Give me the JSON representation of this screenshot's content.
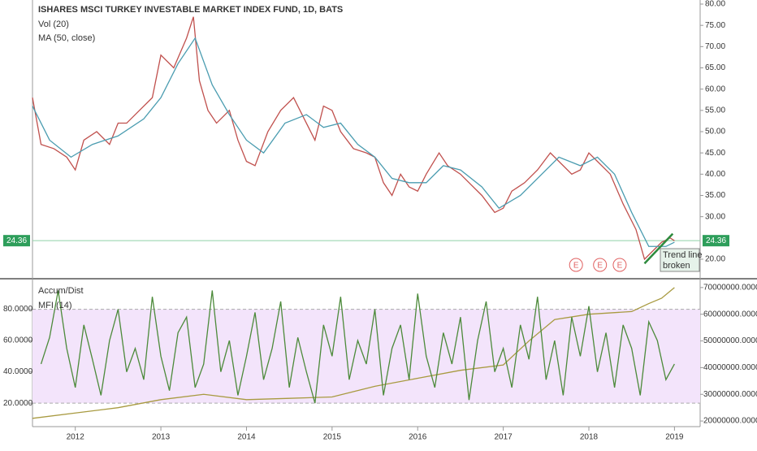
{
  "chart_data": [
    {
      "type": "line",
      "title": "ISHARES MSCI TURKEY INVESTABLE MARKET INDEX FUND, 1D, BATS",
      "legend": [
        "Vol (20)",
        "MA (50, close)"
      ],
      "xlim": [
        2011.5,
        2019.3
      ],
      "ylim": [
        15.6,
        80.96
      ],
      "yticks": [
        {
          "value": 80,
          "label": "80.00"
        },
        {
          "value": 75,
          "label": "75.00"
        },
        {
          "value": 70,
          "label": "70.00"
        },
        {
          "value": 65,
          "label": "65.00"
        },
        {
          "value": 60,
          "label": "60.00"
        },
        {
          "value": 55,
          "label": "55.00"
        },
        {
          "value": 50,
          "label": "50.00"
        },
        {
          "value": 45,
          "label": "45.00"
        },
        {
          "value": 40,
          "label": "40.00"
        },
        {
          "value": 35,
          "label": "35.00"
        },
        {
          "value": 30,
          "label": "30.00"
        },
        {
          "value": 20,
          "label": "20.00"
        }
      ],
      "last_price": 24.36,
      "series": [
        {
          "color": "#c0504d",
          "x": [
            2011.5,
            2011.6,
            2011.75,
            2011.9,
            2012.0,
            2012.1,
            2012.25,
            2012.4,
            2012.5,
            2012.6,
            2012.75,
            2012.9,
            2013.0,
            2013.15,
            2013.3,
            2013.38,
            2013.45,
            2013.55,
            2013.65,
            2013.8,
            2013.9,
            2014.0,
            2014.1,
            2014.25,
            2014.4,
            2014.55,
            2014.7,
            2014.8,
            2014.9,
            2015.0,
            2015.1,
            2015.25,
            2015.4,
            2015.5,
            2015.6,
            2015.7,
            2015.8,
            2015.9,
            2016.0,
            2016.1,
            2016.25,
            2016.35,
            2016.5,
            2016.6,
            2016.75,
            2016.9,
            2017.0,
            2017.1,
            2017.25,
            2017.4,
            2017.55,
            2017.65,
            2017.8,
            2017.9,
            2018.0,
            2018.1,
            2018.25,
            2018.4,
            2018.55,
            2018.65,
            2018.75,
            2018.85,
            2018.95,
            2019.0
          ],
          "values": [
            58,
            47,
            46,
            44,
            41,
            48,
            50,
            47,
            52,
            52,
            55,
            58,
            68,
            65,
            72,
            77,
            62,
            55,
            52,
            55,
            48,
            43,
            42,
            50,
            55,
            58,
            52,
            48,
            56,
            55,
            50,
            46,
            45,
            44,
            38,
            35,
            40,
            37,
            36,
            40,
            45,
            42,
            40,
            38,
            35,
            31,
            32,
            36,
            38,
            41,
            45,
            43,
            40,
            41,
            45,
            43,
            40,
            33,
            27,
            20,
            22,
            24,
            25,
            24.36
          ]
        },
        {
          "name": "MA (50, close)",
          "color": "#4a9cb0",
          "x": [
            2011.5,
            2011.7,
            2011.95,
            2012.2,
            2012.5,
            2012.8,
            2013.0,
            2013.2,
            2013.4,
            2013.6,
            2013.8,
            2014.0,
            2014.2,
            2014.45,
            2014.7,
            2014.9,
            2015.1,
            2015.3,
            2015.5,
            2015.7,
            2015.9,
            2016.1,
            2016.3,
            2016.5,
            2016.75,
            2016.95,
            2017.2,
            2017.45,
            2017.65,
            2017.9,
            2018.1,
            2018.3,
            2018.5,
            2018.7,
            2018.9,
            2019.0
          ],
          "values": [
            56,
            48,
            44,
            47,
            49,
            53,
            58,
            66,
            72,
            61,
            54,
            48,
            45,
            52,
            54,
            51,
            52,
            47,
            44,
            39,
            38,
            38,
            42,
            41,
            37,
            32,
            35,
            40,
            44,
            42,
            44,
            40,
            31,
            23,
            23,
            24
          ]
        }
      ],
      "events": [
        {
          "x": 2017.85,
          "label": "E"
        },
        {
          "x": 2018.13,
          "label": "E"
        },
        {
          "x": 2018.36,
          "label": "E"
        }
      ],
      "trend_line": {
        "x": [
          2018.65,
          2018.98
        ],
        "y": [
          19,
          26
        ]
      },
      "annotation": "Trend line broken"
    },
    {
      "type": "line",
      "legend": [
        "Accum/Dist",
        "MFI (14)"
      ],
      "xlim": [
        2011.5,
        2019.3
      ],
      "xticks": [
        2012,
        2013,
        2014,
        2015,
        2016,
        2017,
        2018,
        2019
      ],
      "ylim": [
        5,
        99
      ],
      "yticks": [
        {
          "value": 80,
          "label": "80.0000"
        },
        {
          "value": 60,
          "label": "60.0000"
        },
        {
          "value": 40,
          "label": "40.0000"
        },
        {
          "value": 20,
          "label": "20.0000"
        }
      ],
      "bands": [
        20,
        80
      ],
      "y2lim": [
        17900000,
        73000000
      ],
      "y2ticks": [
        {
          "value": 70000000,
          "label": "70000000.0000"
        },
        {
          "value": 60000000,
          "label": "60000000.0000"
        },
        {
          "value": 50000000,
          "label": "50000000.0000"
        },
        {
          "value": 40000000,
          "label": "40000000.0000"
        },
        {
          "value": 30000000,
          "label": "30000000.0000"
        },
        {
          "value": 20000000,
          "label": "20000000.0000"
        }
      ],
      "series": [
        {
          "name": "Accum/Dist",
          "color": "#a89a40",
          "axis": "y2",
          "x": [
            2011.5,
            2012.0,
            2012.5,
            2013.0,
            2013.5,
            2014.0,
            2014.5,
            2015.0,
            2015.5,
            2016.0,
            2016.5,
            2017.0,
            2017.3,
            2017.6,
            2018.0,
            2018.5,
            2018.7,
            2018.85,
            2019.0
          ],
          "values": [
            21000000,
            23000000,
            25000000,
            28000000,
            30000000,
            28000000,
            28500000,
            29000000,
            33000000,
            36000000,
            39000000,
            41000000,
            50000000,
            58000000,
            60000000,
            61000000,
            64000000,
            66000000,
            70000000
          ]
        },
        {
          "name": "MFI (14)",
          "color": "#4c8a3a",
          "x": [
            2011.6,
            2011.7,
            2011.8,
            2011.9,
            2012.0,
            2012.1,
            2012.2,
            2012.3,
            2012.4,
            2012.5,
            2012.6,
            2012.7,
            2012.8,
            2012.9,
            2013.0,
            2013.1,
            2013.2,
            2013.3,
            2013.4,
            2013.5,
            2013.6,
            2013.7,
            2013.8,
            2013.9,
            2014.0,
            2014.1,
            2014.2,
            2014.3,
            2014.4,
            2014.5,
            2014.6,
            2014.7,
            2014.8,
            2014.9,
            2015.0,
            2015.1,
            2015.2,
            2015.3,
            2015.4,
            2015.5,
            2015.6,
            2015.7,
            2015.8,
            2015.9,
            2016.0,
            2016.1,
            2016.2,
            2016.3,
            2016.4,
            2016.5,
            2016.6,
            2016.7,
            2016.8,
            2016.9,
            2017.0,
            2017.1,
            2017.2,
            2017.3,
            2017.4,
            2017.5,
            2017.6,
            2017.7,
            2017.8,
            2017.9,
            2018.0,
            2018.1,
            2018.2,
            2018.3,
            2018.4,
            2018.5,
            2018.6,
            2018.7,
            2018.8,
            2018.9,
            2019.0
          ],
          "values": [
            45,
            62,
            92,
            55,
            30,
            70,
            48,
            25,
            60,
            80,
            40,
            55,
            35,
            88,
            50,
            28,
            65,
            75,
            30,
            45,
            92,
            40,
            60,
            25,
            50,
            78,
            35,
            55,
            85,
            30,
            62,
            40,
            20,
            70,
            50,
            88,
            35,
            60,
            45,
            80,
            25,
            55,
            70,
            35,
            90,
            50,
            30,
            65,
            45,
            75,
            22,
            60,
            85,
            40,
            55,
            30,
            70,
            48,
            88,
            35,
            60,
            25,
            75,
            50,
            82,
            40,
            65,
            30,
            70,
            55,
            25,
            72,
            60,
            35,
            45
          ]
        }
      ]
    }
  ]
}
